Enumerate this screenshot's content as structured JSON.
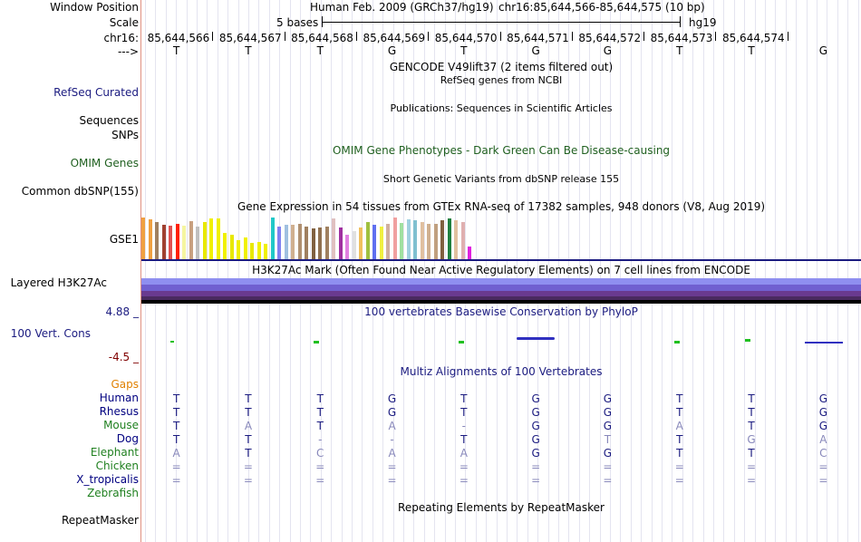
{
  "header": {
    "window_position_label": "Window Position",
    "scale_label": "Scale",
    "chr_label": "chr16:",
    "strand_label": "--->",
    "assembly": "Human Feb. 2009 (GRCh37/hg19)",
    "position": "chr16:85,644,566-85,644,575 (10 bp)",
    "scale_text": "5 bases",
    "db": "hg19",
    "coords": [
      "85,644,566",
      "85,644,567",
      "85,644,568",
      "85,644,569",
      "85,644,570",
      "85,644,571",
      "85,644,572",
      "85,644,573",
      "85,644,574"
    ],
    "bases": [
      "T",
      "T",
      "T",
      "G",
      "T",
      "G",
      "G",
      "T",
      "T",
      "G"
    ]
  },
  "tracks": {
    "gencode_title": "GENCODE V49lift37 (2 items filtered out)",
    "refseq_label": "RefSeq Curated",
    "refseq_title": "RefSeq genes from NCBI",
    "publications_title": "Publications: Sequences in Scientific Articles",
    "sequences_label": "Sequences",
    "snps_label": "SNPs",
    "omim_title": "OMIM Gene Phenotypes - Dark Green Can Be Disease-causing",
    "omim_label": "OMIM Genes",
    "dbsnp_title": "Short Genetic Variants from dbSNP release 155",
    "dbsnp_label": "Common dbSNP(155)",
    "gtex_title": "Gene Expression in 54 tissues from GTEx RNA-seq of 17382 samples, 948 donors (V8, Aug 2019)",
    "gtex_label": "GSE1",
    "h3k27ac_title": "H3K27Ac Mark (Often Found Near Active Regulatory Elements) on 7 cell lines from ENCODE",
    "h3k27ac_label": "Layered H3K27Ac",
    "phylop_title": "100 vertebrates Basewise Conservation by PhyloP",
    "phylop_label": "100 Vert. Cons",
    "phylop_max": "4.88 _",
    "phylop_min": "-4.5 _",
    "multiz_title": "Multiz Alignments of 100 Vertebrates",
    "gaps_label": "Gaps",
    "repeat_title": "Repeating Elements by RepeatMasker",
    "repeat_label": "RepeatMasker"
  },
  "gtex": [
    {
      "v": 0.95,
      "c": "#f0a040"
    },
    {
      "v": 0.92,
      "c": "#f0a040"
    },
    {
      "v": 0.85,
      "c": "#a08060"
    },
    {
      "v": 0.8,
      "c": "#a04030"
    },
    {
      "v": 0.78,
      "c": "#e05050"
    },
    {
      "v": 0.82,
      "c": "#ff2000"
    },
    {
      "v": 0.77,
      "c": "#f5f5a0"
    },
    {
      "v": 0.88,
      "c": "#c8a080"
    },
    {
      "v": 0.74,
      "c": "#c0c0c0"
    },
    {
      "v": 0.86,
      "c": "#e8e800"
    },
    {
      "v": 0.93,
      "c": "#f0f000"
    },
    {
      "v": 0.93,
      "c": "#f0f000"
    },
    {
      "v": 0.6,
      "c": "#f0f000"
    },
    {
      "v": 0.56,
      "c": "#e8e800"
    },
    {
      "v": 0.44,
      "c": "#f0f000"
    },
    {
      "v": 0.5,
      "c": "#f0f000"
    },
    {
      "v": 0.38,
      "c": "#e8e800"
    },
    {
      "v": 0.4,
      "c": "#f0f000"
    },
    {
      "v": 0.36,
      "c": "#f0f000"
    },
    {
      "v": 0.95,
      "c": "#20c8c8"
    },
    {
      "v": 0.76,
      "c": "#8080f0"
    },
    {
      "v": 0.8,
      "c": "#a0c0e0"
    },
    {
      "v": 0.8,
      "c": "#d0b090"
    },
    {
      "v": 0.82,
      "c": "#b09070"
    },
    {
      "v": 0.74,
      "c": "#a08060"
    },
    {
      "v": 0.7,
      "c": "#806040"
    },
    {
      "v": 0.72,
      "c": "#907050"
    },
    {
      "v": 0.76,
      "c": "#a08060"
    },
    {
      "v": 0.94,
      "c": "#e0c0c0"
    },
    {
      "v": 0.73,
      "c": "#a030a0"
    },
    {
      "v": 0.56,
      "c": "#e080e0"
    },
    {
      "v": 0.64,
      "c": "#e0e0e0"
    },
    {
      "v": 0.72,
      "c": "#f0c060"
    },
    {
      "v": 0.86,
      "c": "#a0c040"
    },
    {
      "v": 0.8,
      "c": "#6070f0"
    },
    {
      "v": 0.76,
      "c": "#f0f040"
    },
    {
      "v": 0.82,
      "c": "#d0b0a0"
    },
    {
      "v": 0.96,
      "c": "#f0a0a0"
    },
    {
      "v": 0.84,
      "c": "#a0e0a0"
    },
    {
      "v": 0.92,
      "c": "#a0d0e0"
    },
    {
      "v": 0.9,
      "c": "#80c0d0"
    },
    {
      "v": 0.86,
      "c": "#e0c0a0"
    },
    {
      "v": 0.82,
      "c": "#d0b090"
    },
    {
      "v": 0.82,
      "c": "#c0a080"
    },
    {
      "v": 0.9,
      "c": "#806040"
    },
    {
      "v": 0.94,
      "c": "#208040"
    },
    {
      "v": 0.9,
      "c": "#e0c0a0"
    },
    {
      "v": 0.86,
      "c": "#e0b0b0"
    },
    {
      "v": 0.3,
      "c": "#e020e0"
    }
  ],
  "species": [
    {
      "name": "Gaps",
      "color": "#e08000",
      "row": ""
    },
    {
      "name": "Human",
      "color": "#000080",
      "row": "TTTGTGGTTG",
      "faded": []
    },
    {
      "name": "Rhesus",
      "color": "#000080",
      "row": "TTTGTGGTTG",
      "faded": []
    },
    {
      "name": "Mouse",
      "color": "#208020",
      "row": "TATA-GGATG",
      "faded": [
        1,
        3,
        4,
        7
      ]
    },
    {
      "name": "Dog",
      "color": "#000080",
      "row": "TT--TGTTGA",
      "faded": [
        2,
        3,
        6,
        8,
        9
      ]
    },
    {
      "name": "Elephant",
      "color": "#208020",
      "row": "ATCAAGGTTC",
      "faded": [
        0,
        2,
        3,
        4,
        9
      ]
    },
    {
      "name": "Chicken",
      "color": "#208020",
      "row": "==========",
      "faded": [
        0,
        1,
        2,
        3,
        4,
        5,
        6,
        7,
        8,
        9
      ]
    },
    {
      "name": "X_tropicalis",
      "color": "#000080",
      "row": "==========",
      "faded": [
        0,
        1,
        2,
        3,
        4,
        5,
        6,
        7,
        8,
        9
      ]
    },
    {
      "name": "Zebrafish",
      "color": "#208020",
      "row": ""
    }
  ],
  "colors": {
    "track_blue": "#1b1b80",
    "omim_green": "#206020",
    "gaps_orange": "#e08000",
    "phylop_red": "#800000",
    "faded": "#8888bb"
  }
}
